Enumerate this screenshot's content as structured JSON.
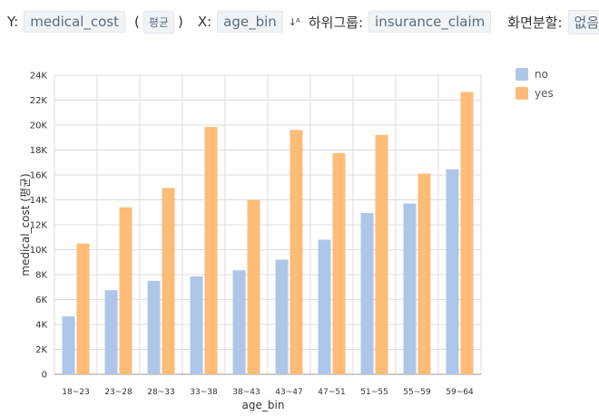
{
  "toolbar": {
    "y_label": "Y:",
    "y_value": "medical_cost",
    "agg_open": "(",
    "agg_value": "평균",
    "agg_close": ")",
    "x_label": "X:",
    "x_value": "age_bin",
    "subgroup_label": "하위그룹:",
    "subgroup_value": "insurance_claim",
    "split_label": "화면분할:",
    "split_value": "없음"
  },
  "colors": {
    "no": "#aec7e8",
    "yes": "#ffbb78",
    "grid": "#dddddd",
    "axis": "#999999"
  },
  "chart_data": {
    "type": "bar",
    "categories": [
      "18~23",
      "23~28",
      "28~33",
      "33~38",
      "38~43",
      "43~47",
      "47~51",
      "51~55",
      "55~59",
      "59~64"
    ],
    "series": [
      {
        "name": "no",
        "values": [
          4650,
          6750,
          7500,
          7850,
          8350,
          9200,
          10800,
          12950,
          13700,
          16450
        ]
      },
      {
        "name": "yes",
        "values": [
          10500,
          13400,
          14950,
          19850,
          14000,
          19600,
          17750,
          19200,
          16100,
          22650
        ]
      }
    ],
    "xlabel": "age_bin",
    "ylabel": "medical_cost (평균)",
    "ylim": [
      0,
      24000
    ],
    "yticks": [
      0,
      2000,
      4000,
      6000,
      8000,
      10000,
      12000,
      14000,
      16000,
      18000,
      20000,
      22000,
      24000
    ],
    "ytick_labels": [
      "0",
      "2K",
      "4K",
      "6K",
      "8K",
      "10K",
      "12K",
      "14K",
      "16K",
      "18K",
      "20K",
      "22K",
      "24K"
    ],
    "grid": true,
    "legend_position": "top-right"
  }
}
